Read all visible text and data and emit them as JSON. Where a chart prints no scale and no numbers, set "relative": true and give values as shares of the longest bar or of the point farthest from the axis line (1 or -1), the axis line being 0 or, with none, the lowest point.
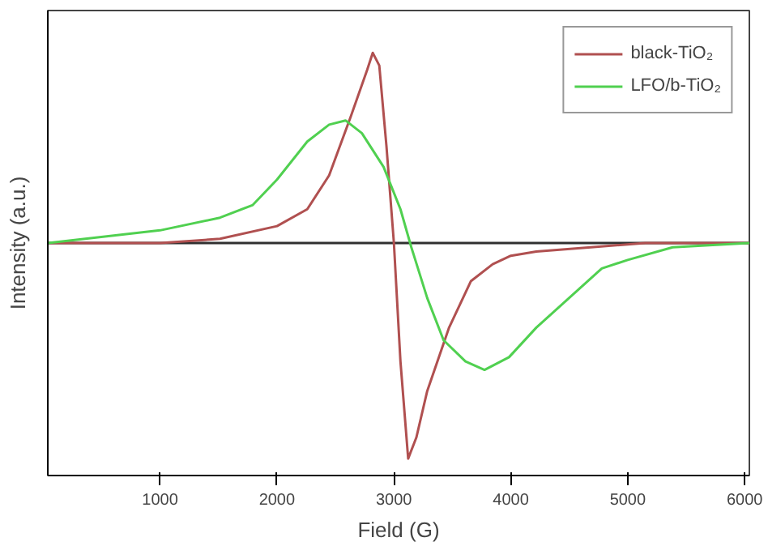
{
  "chart_data": {
    "type": "line",
    "relative": true,
    "xlabel": "Field (G)",
    "ylabel": "Intensity (a.u.)",
    "xlim": [
      40,
      6040
    ],
    "xticks": [
      1000,
      2000,
      3000,
      4000,
      5000,
      6000
    ],
    "tick_labels": "x",
    "legend": "top right",
    "grid": false,
    "marker": "none",
    "line_style": "solid",
    "series": [
      {
        "color": "#303030",
        "x": [
          40,
          1000,
          2000,
          3000,
          4000,
          5000,
          6040
        ],
        "values": [
          0.55,
          0.55,
          0.55,
          0.55,
          0.55,
          0.55,
          0.55
        ]
      },
      {
        "name": "black-TiO₂",
        "color": "#b05050",
        "x": [
          40,
          1000,
          1513,
          2000,
          2259,
          2446,
          2632,
          2772,
          2819,
          2875,
          2936,
          3000,
          3056,
          3122,
          3192,
          3285,
          3472,
          3659,
          3845,
          4000,
          4218,
          4685,
          5151,
          6040
        ],
        "values": [
          0.55,
          0.55,
          0.56,
          0.59,
          0.63,
          0.71,
          0.85,
          0.96,
          1.0,
          0.97,
          0.78,
          0.55,
          0.27,
          0.04,
          0.09,
          0.2,
          0.35,
          0.46,
          0.5,
          0.52,
          0.53,
          0.54,
          0.55,
          0.55
        ]
      },
      {
        "name": "LFO/b-TiO₂",
        "color": "#50d050",
        "x": [
          40,
          1000,
          1513,
          1793,
          2000,
          2259,
          2446,
          2586,
          2726,
          2912,
          3056,
          3149,
          3285,
          3425,
          3612,
          3775,
          3985,
          4218,
          4498,
          4778,
          5000,
          5384,
          6040
        ],
        "values": [
          0.55,
          0.58,
          0.61,
          0.64,
          0.7,
          0.79,
          0.83,
          0.84,
          0.81,
          0.73,
          0.63,
          0.54,
          0.42,
          0.32,
          0.27,
          0.25,
          0.28,
          0.35,
          0.42,
          0.49,
          0.51,
          0.54,
          0.55
        ]
      }
    ]
  }
}
